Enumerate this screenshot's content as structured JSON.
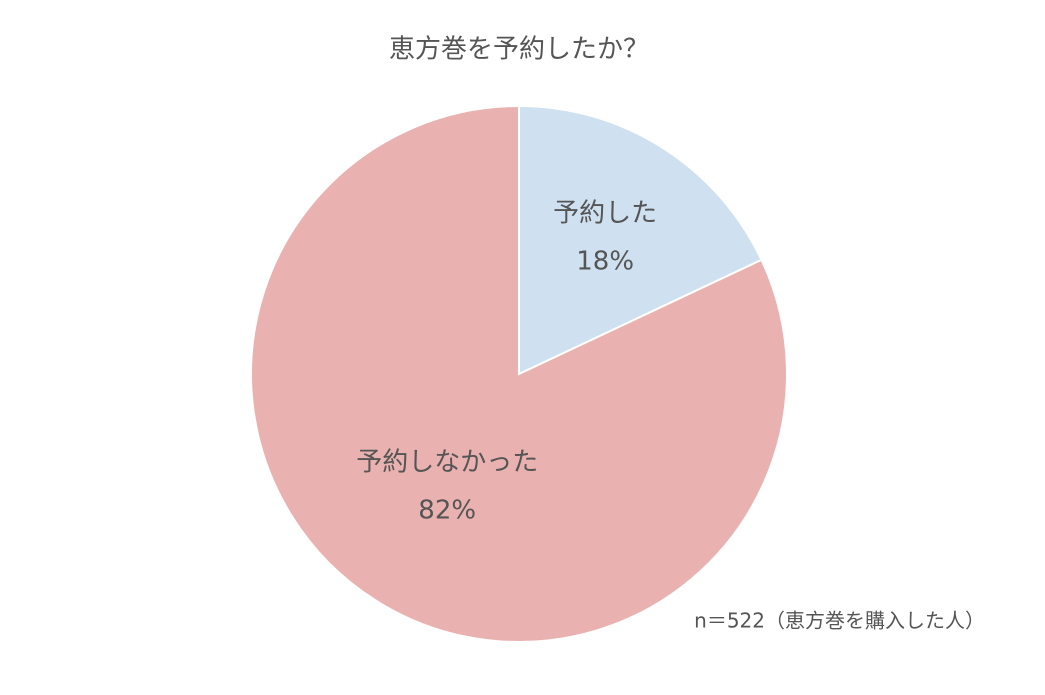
{
  "chart_data": {
    "type": "pie",
    "title": "恵方巻を予約したか？",
    "categories": [
      "予約した",
      "予約しなかった"
    ],
    "values": [
      18,
      82
    ],
    "value_labels": [
      "18%",
      "82%"
    ],
    "colors": [
      "#cfe0f1",
      "#eab1b1"
    ],
    "note": "n＝522（恵方巻を購入した人）"
  }
}
